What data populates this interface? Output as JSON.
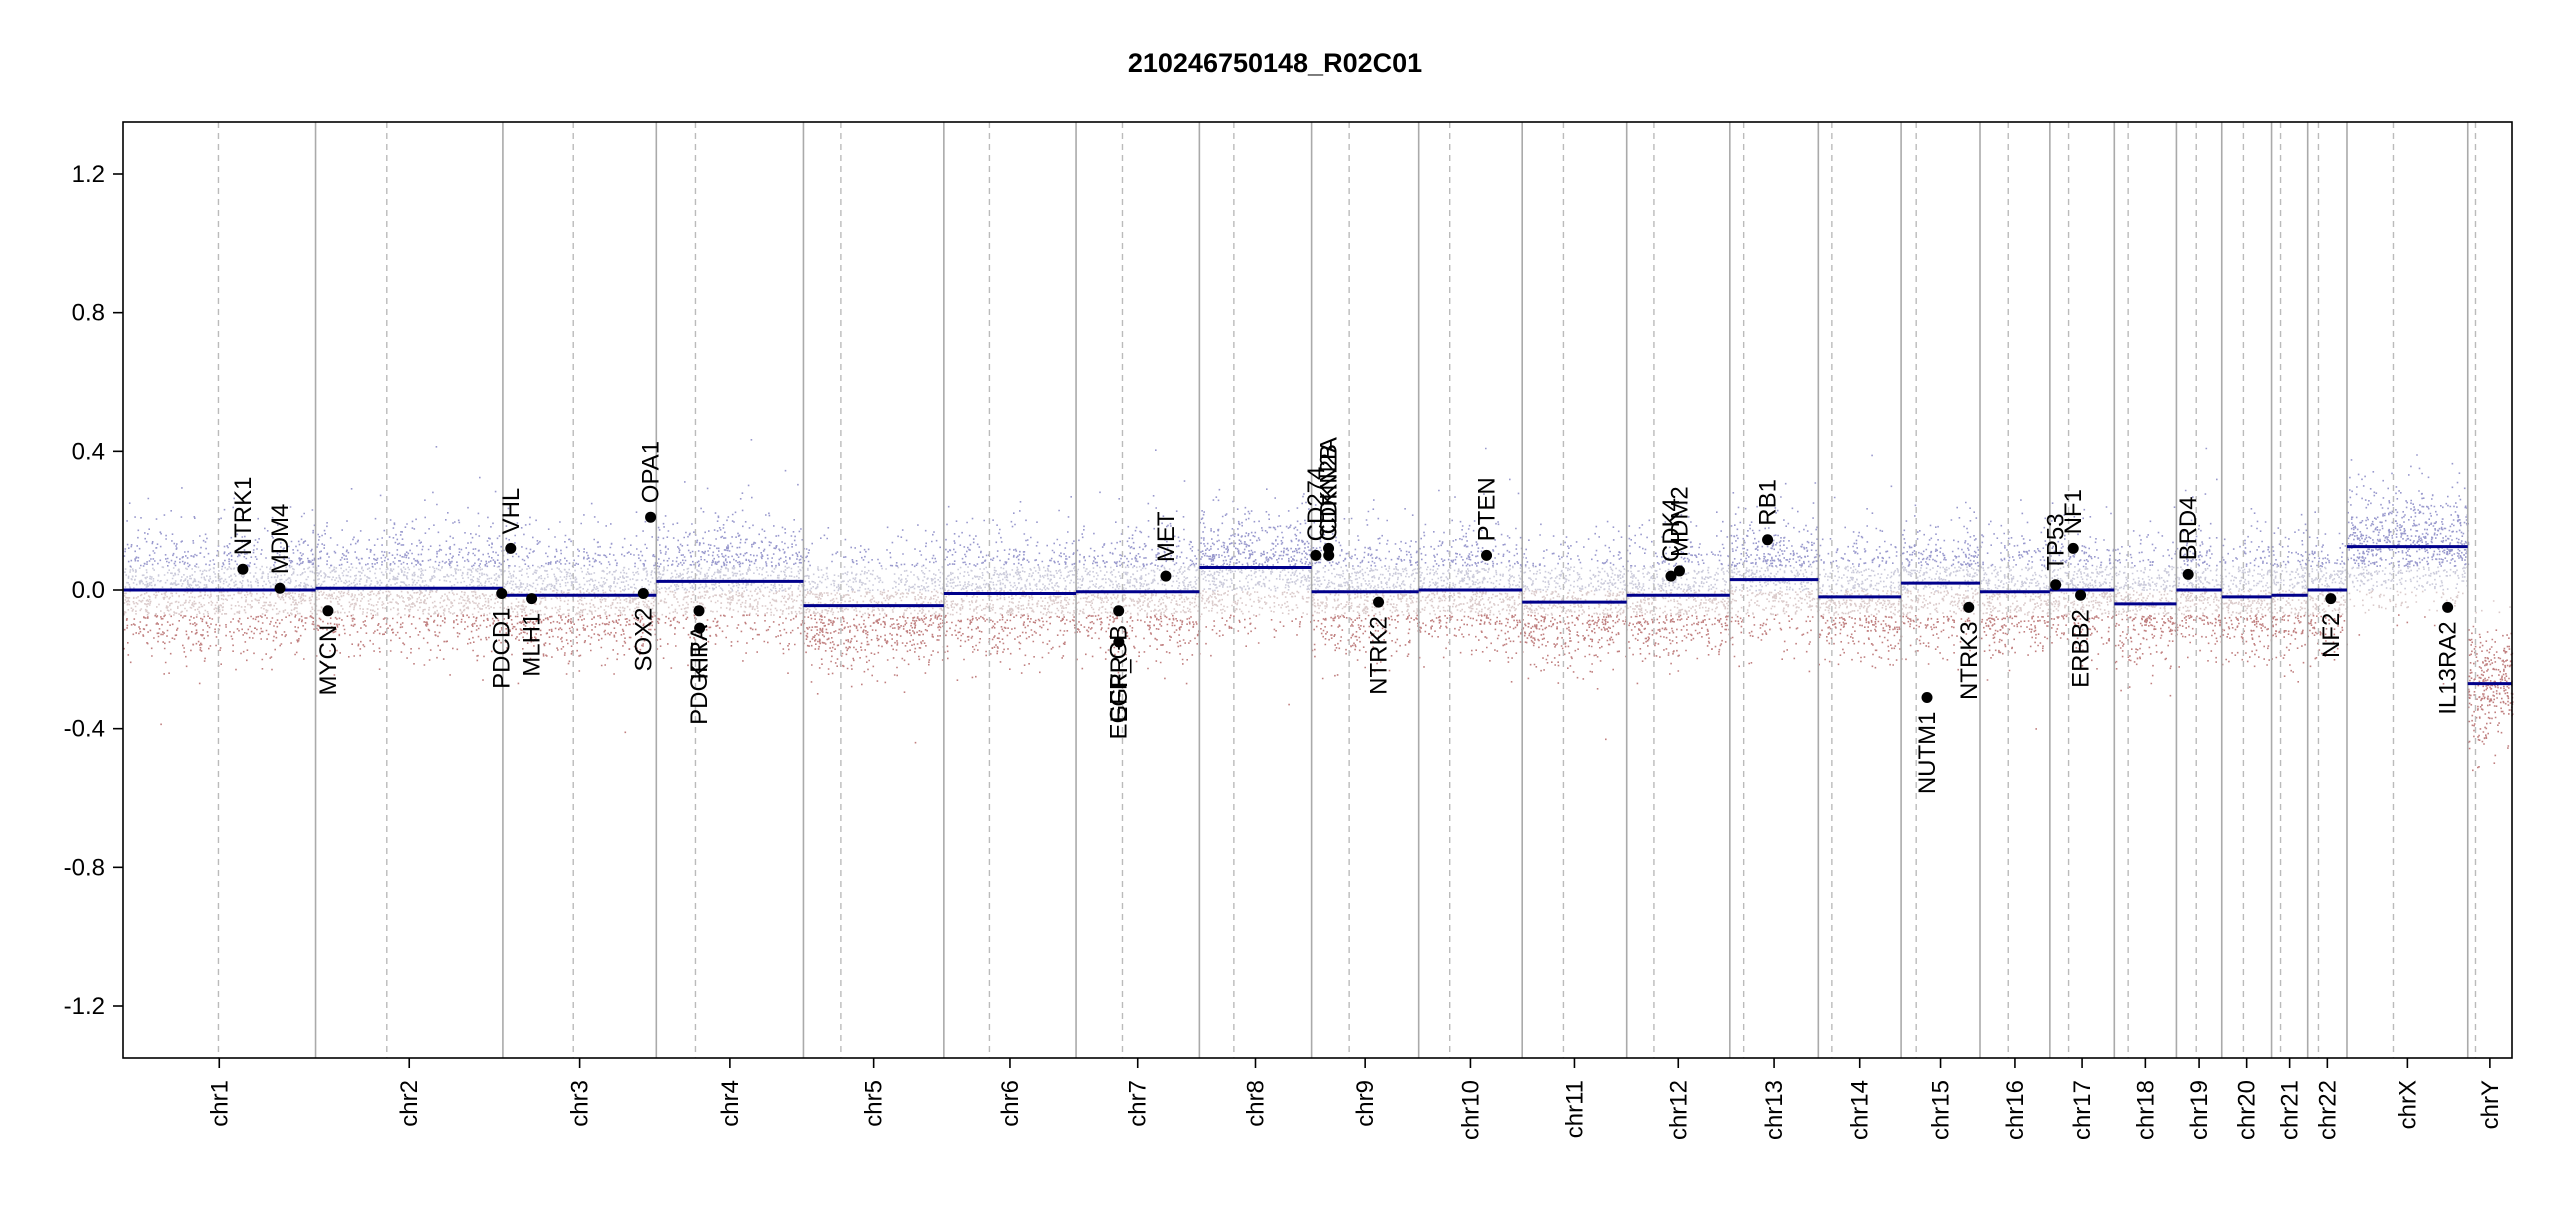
{
  "chart_data": {
    "type": "scatter",
    "title": "210246750148_R02C01",
    "xlabel": "",
    "ylabel": "",
    "ylim": [
      -1.35,
      1.35
    ],
    "yticks": [
      "-1.2",
      "-0.8",
      "-0.4",
      "0.0",
      "0.4",
      "0.8",
      "1.2"
    ],
    "grid": true,
    "colors": {
      "segment": "#00008b",
      "gain": "#8080c0",
      "loss": "#b06060",
      "neutral": "#c0c0c8",
      "gene_point": "#000000",
      "chrom_border": "#aaaaaa",
      "centromere": "#bbbbbb"
    },
    "chromosomes": [
      {
        "name": "chr1",
        "start": 0.0,
        "end": 248.9,
        "centromere": 123.4,
        "segment": 0.0
      },
      {
        "name": "chr2",
        "start": 248.9,
        "end": 491.1,
        "centromere": 341.0,
        "segment": 0.005
      },
      {
        "name": "chr3",
        "start": 491.1,
        "end": 689.4,
        "centromere": 582.0,
        "segment": -0.015
      },
      {
        "name": "chr4",
        "start": 689.4,
        "end": 879.6,
        "centromere": 740.0,
        "segment": 0.025
      },
      {
        "name": "chr5",
        "start": 879.6,
        "end": 1061.1,
        "centromere": 928.0,
        "segment": -0.045
      },
      {
        "name": "chr6",
        "start": 1061.1,
        "end": 1232.0,
        "centromere": 1120.0,
        "segment": -0.01
      },
      {
        "name": "chr7",
        "start": 1232.0,
        "end": 1391.4,
        "centromere": 1292.0,
        "segment": -0.005
      },
      {
        "name": "chr8",
        "start": 1391.4,
        "end": 1536.5,
        "centromere": 1436.0,
        "segment": 0.065
      },
      {
        "name": "chr9",
        "start": 1536.5,
        "end": 1674.9,
        "centromere": 1585.0,
        "segment": -0.005
      },
      {
        "name": "chr10",
        "start": 1674.9,
        "end": 1808.7,
        "centromere": 1715.0,
        "segment": 0.0
      },
      {
        "name": "chr11",
        "start": 1808.7,
        "end": 1943.8,
        "centromere": 1862.0,
        "segment": -0.035
      },
      {
        "name": "chr12",
        "start": 1943.8,
        "end": 2077.1,
        "centromere": 1979.0,
        "segment": -0.015
      },
      {
        "name": "chr13",
        "start": 2077.1,
        "end": 2191.5,
        "centromere": 2095.0,
        "segment": 0.03
      },
      {
        "name": "chr14",
        "start": 2191.5,
        "end": 2298.5,
        "centromere": 2209.0,
        "segment": -0.02
      },
      {
        "name": "chr15",
        "start": 2298.5,
        "end": 2400.5,
        "centromere": 2318.0,
        "segment": 0.02
      },
      {
        "name": "chr16",
        "start": 2400.5,
        "end": 2490.8,
        "centromere": 2437.0,
        "segment": -0.005
      },
      {
        "name": "chr17",
        "start": 2490.8,
        "end": 2574.1,
        "centromere": 2515.0,
        "segment": 0.0
      },
      {
        "name": "chr18",
        "start": 2574.1,
        "end": 2654.4,
        "centromere": 2592.0,
        "segment": -0.04
      },
      {
        "name": "chr19",
        "start": 2654.4,
        "end": 2713.0,
        "centromere": 2680.0,
        "segment": 0.0
      },
      {
        "name": "chr20",
        "start": 2713.0,
        "end": 2777.4,
        "centromere": 2741.0,
        "segment": -0.02
      },
      {
        "name": "chr21",
        "start": 2777.4,
        "end": 2824.1,
        "centromere": 2789.0,
        "segment": -0.015
      },
      {
        "name": "chr22",
        "start": 2824.1,
        "end": 2874.9,
        "centromere": 2838.0,
        "segment": 0.0
      },
      {
        "name": "chrX",
        "start": 2874.9,
        "end": 3031.0,
        "centromere": 2935.0,
        "segment": 0.125
      },
      {
        "name": "chrY",
        "start": 3031.0,
        "end": 3088.2,
        "centromere": 3041.0,
        "segment": -0.27
      }
    ],
    "genes": [
      {
        "name": "NTRK1",
        "pos": 155.0,
        "value": 0.06,
        "label_dir": "up"
      },
      {
        "name": "MDM4",
        "pos": 203.0,
        "value": 0.005,
        "label_dir": "up"
      },
      {
        "name": "MYCN",
        "pos": 264.9,
        "value": -0.06,
        "label_dir": "down"
      },
      {
        "name": "PDCD1",
        "pos": 489.6,
        "value": -0.01,
        "label_dir": "down"
      },
      {
        "name": "VHL",
        "pos": 501.3,
        "value": 0.12,
        "label_dir": "up"
      },
      {
        "name": "MLH1",
        "pos": 528.2,
        "value": -0.025,
        "label_dir": "down"
      },
      {
        "name": "SOX2",
        "pos": 672.6,
        "value": -0.01,
        "label_dir": "down"
      },
      {
        "name": "OPA1",
        "pos": 682.0,
        "value": 0.21,
        "label_dir": "up"
      },
      {
        "name": "PDGFRA",
        "pos": 744.6,
        "value": -0.06,
        "label_dir": "down"
      },
      {
        "name": "KIT",
        "pos": 745.4,
        "value": -0.11,
        "label_dir": "down"
      },
      {
        "name": "EGFR_GB",
        "pos": 1287.1,
        "value": -0.06,
        "label_dir": "down"
      },
      {
        "name": "EGFR",
        "pos": 1287.3,
        "value": -0.15,
        "label_dir": "down"
      },
      {
        "name": "MET",
        "pos": 1348.2,
        "value": 0.04,
        "label_dir": "up"
      },
      {
        "name": "CD274",
        "pos": 1542.0,
        "value": 0.1,
        "label_dir": "up"
      },
      {
        "name": "CDKN2A",
        "pos": 1558.4,
        "value": 0.12,
        "label_dir": "up"
      },
      {
        "name": "CDKN2B",
        "pos": 1558.6,
        "value": 0.1,
        "label_dir": "up"
      },
      {
        "name": "NTRK2",
        "pos": 1623.0,
        "value": -0.035,
        "label_dir": "down"
      },
      {
        "name": "PTEN",
        "pos": 1762.6,
        "value": 0.1,
        "label_dir": "up"
      },
      {
        "name": "CDK4",
        "pos": 2001.0,
        "value": 0.04,
        "label_dir": "up"
      },
      {
        "name": "MDM2",
        "pos": 2012.0,
        "value": 0.055,
        "label_dir": "up"
      },
      {
        "name": "RB1",
        "pos": 2125.9,
        "value": 0.145,
        "label_dir": "up"
      },
      {
        "name": "NUTM1",
        "pos": 2332.0,
        "value": -0.31,
        "label_dir": "down"
      },
      {
        "name": "NTRK3",
        "pos": 2386.0,
        "value": -0.05,
        "label_dir": "down"
      },
      {
        "name": "TP53",
        "pos": 2498.3,
        "value": 0.015,
        "label_dir": "up"
      },
      {
        "name": "NF1",
        "pos": 2521.0,
        "value": 0.12,
        "label_dir": "up"
      },
      {
        "name": "ERBB2",
        "pos": 2530.5,
        "value": -0.015,
        "label_dir": "down"
      },
      {
        "name": "BRD4",
        "pos": 2669.6,
        "value": 0.045,
        "label_dir": "up"
      },
      {
        "name": "NF2",
        "pos": 2854.0,
        "value": -0.025,
        "label_dir": "down"
      },
      {
        "name": "IL13RA2",
        "pos": 3005.0,
        "value": -0.05,
        "label_dir": "down"
      }
    ]
  }
}
